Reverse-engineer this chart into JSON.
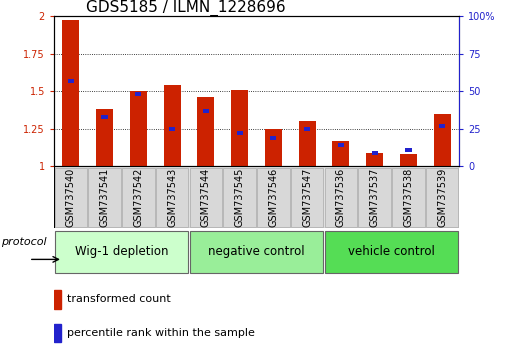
{
  "title": "GDS5185 / ILMN_1228696",
  "categories": [
    "GSM737540",
    "GSM737541",
    "GSM737542",
    "GSM737543",
    "GSM737544",
    "GSM737545",
    "GSM737546",
    "GSM737547",
    "GSM737536",
    "GSM737537",
    "GSM737538",
    "GSM737539"
  ],
  "red_values": [
    1.97,
    1.38,
    1.5,
    1.54,
    1.46,
    1.51,
    1.25,
    1.3,
    1.17,
    1.09,
    1.08,
    1.35
  ],
  "blue_values_pct": [
    57,
    33,
    48,
    25,
    37,
    22,
    19,
    25,
    14,
    9,
    11,
    27
  ],
  "ylim_left": [
    1.0,
    2.0
  ],
  "ylim_right": [
    0,
    100
  ],
  "yticks_left": [
    1.0,
    1.25,
    1.5,
    1.75,
    2.0
  ],
  "yticks_right": [
    0,
    25,
    50,
    75,
    100
  ],
  "ytick_labels_left": [
    "1",
    "1.25",
    "1.5",
    "1.75",
    "2"
  ],
  "ytick_labels_right": [
    "0",
    "25",
    "50",
    "75",
    "100%"
  ],
  "groups": [
    {
      "label": "Wig-1 depletion",
      "start": 0,
      "end": 3,
      "color": "#ccffcc"
    },
    {
      "label": "negative control",
      "start": 4,
      "end": 7,
      "color": "#99ee99"
    },
    {
      "label": "vehicle control",
      "start": 8,
      "end": 11,
      "color": "#55dd55"
    }
  ],
  "protocol_label": "protocol",
  "legend_red": "transformed count",
  "legend_blue": "percentile rank within the sample",
  "red_color": "#cc2200",
  "blue_color": "#2222cc",
  "bar_width": 0.5,
  "blue_bar_width": 0.18,
  "title_fontsize": 11,
  "tick_fontsize": 7,
  "group_fontsize": 8.5,
  "legend_fontsize": 8
}
